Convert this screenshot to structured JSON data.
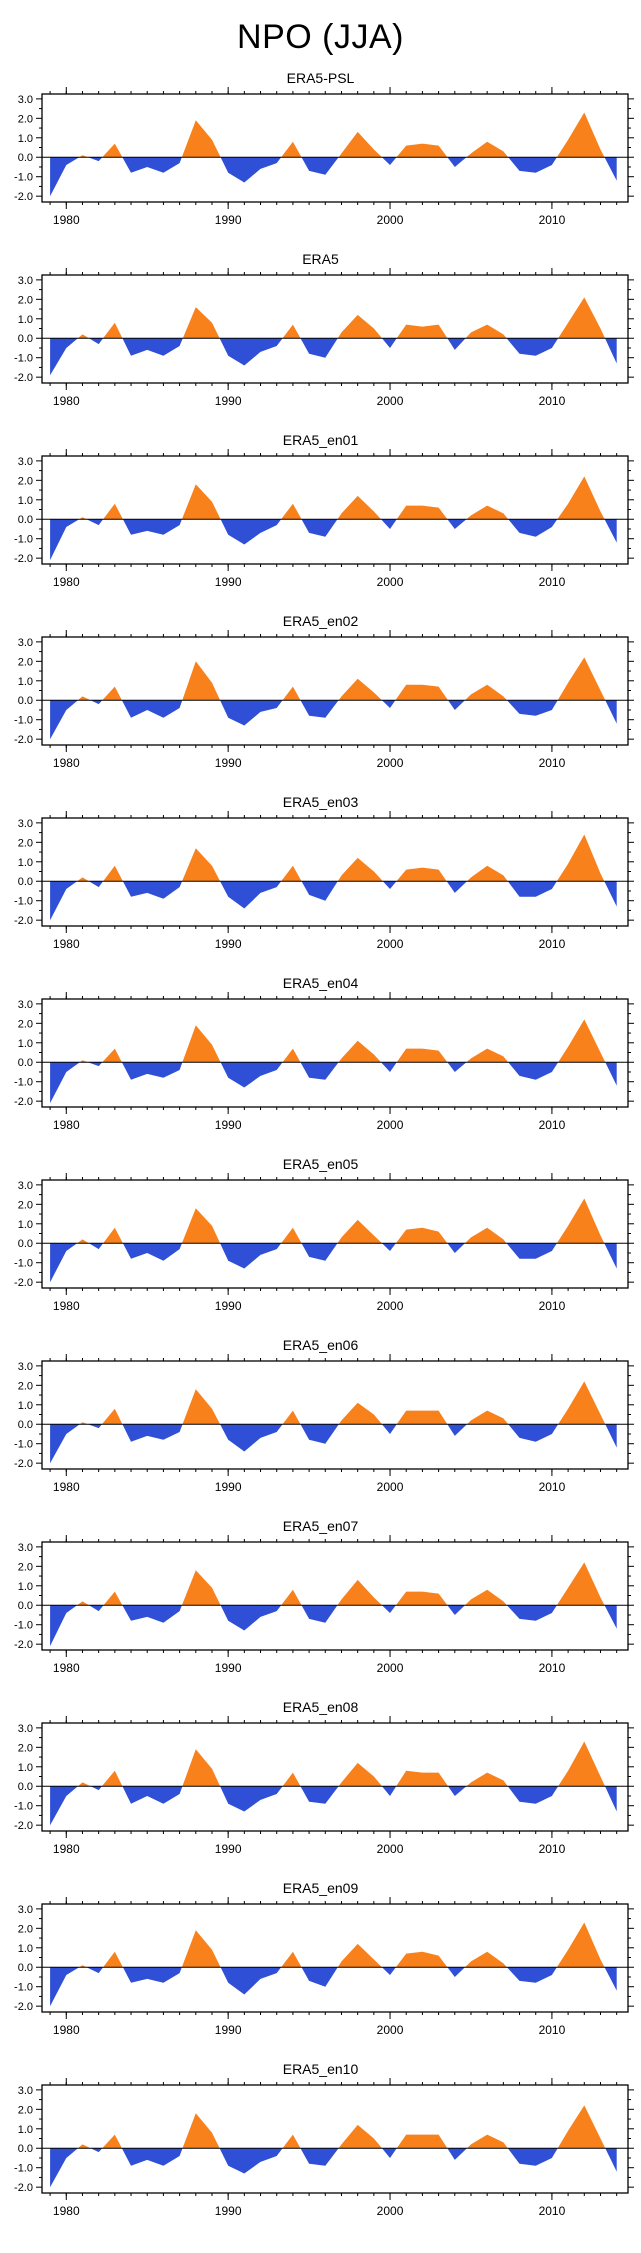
{
  "title": "NPO (JJA)",
  "colors": {
    "positive": "#F8811C",
    "negative": "#2E4FD6",
    "axis": "#000000"
  },
  "chart_data": {
    "type": "area",
    "suptitle": "NPO (JJA)",
    "xlabel": "",
    "ylabel": "",
    "x": [
      1979,
      1980,
      1981,
      1982,
      1983,
      1984,
      1985,
      1986,
      1987,
      1988,
      1989,
      1990,
      1991,
      1992,
      1993,
      1994,
      1995,
      1996,
      1997,
      1998,
      1999,
      2000,
      2001,
      2002,
      2003,
      2004,
      2005,
      2006,
      2007,
      2008,
      2009,
      2010,
      2011,
      2012,
      2013,
      2014
    ],
    "x_ticks": [
      1980,
      1990,
      2000,
      2010
    ],
    "x_tick_labels": [
      "1980",
      "1990",
      "2000",
      "2010"
    ],
    "y_ticks": [
      3.0,
      2.0,
      1.0,
      0.0,
      -1.0,
      -2.0
    ],
    "y_tick_labels": [
      "3.0",
      "2.0",
      "1.0",
      "0.0",
      "-1.0",
      "-2.0"
    ],
    "y_minor_ticks": [
      2.5,
      1.5,
      0.5,
      -0.5,
      -1.5
    ],
    "ylim": [
      -2.3,
      3.25
    ],
    "xlim": [
      1978.5,
      2014.7
    ],
    "grid": false,
    "legend": "none",
    "panels": [
      {
        "title": "ERA5-PSL",
        "values": [
          -2.0,
          -0.4,
          0.1,
          -0.2,
          0.7,
          -0.8,
          -0.5,
          -0.8,
          -0.3,
          1.9,
          0.9,
          -0.8,
          -1.3,
          -0.6,
          -0.3,
          0.8,
          -0.7,
          -0.9,
          0.2,
          1.3,
          0.4,
          -0.4,
          0.6,
          0.7,
          0.6,
          -0.5,
          0.2,
          0.8,
          0.3,
          -0.7,
          -0.8,
          -0.4,
          0.9,
          2.3,
          0.4,
          -1.2
        ]
      },
      {
        "title": "ERA5",
        "values": [
          -1.9,
          -0.5,
          0.2,
          -0.3,
          0.8,
          -0.9,
          -0.6,
          -0.9,
          -0.4,
          1.6,
          0.8,
          -0.9,
          -1.4,
          -0.7,
          -0.4,
          0.7,
          -0.8,
          -1.0,
          0.3,
          1.2,
          0.5,
          -0.5,
          0.7,
          0.6,
          0.7,
          -0.6,
          0.3,
          0.7,
          0.2,
          -0.8,
          -0.9,
          -0.5,
          0.8,
          2.1,
          0.5,
          -1.3
        ]
      },
      {
        "title": "ERA5_en01",
        "values": [
          -2.1,
          -0.4,
          0.1,
          -0.3,
          0.8,
          -0.8,
          -0.6,
          -0.8,
          -0.3,
          1.8,
          0.9,
          -0.8,
          -1.3,
          -0.7,
          -0.3,
          0.8,
          -0.7,
          -0.9,
          0.3,
          1.2,
          0.4,
          -0.5,
          0.7,
          0.7,
          0.6,
          -0.5,
          0.2,
          0.7,
          0.3,
          -0.7,
          -0.9,
          -0.4,
          0.8,
          2.2,
          0.4,
          -1.2
        ]
      },
      {
        "title": "ERA5_en02",
        "values": [
          -2.0,
          -0.5,
          0.2,
          -0.2,
          0.7,
          -0.9,
          -0.5,
          -0.9,
          -0.4,
          2.0,
          0.9,
          -0.9,
          -1.3,
          -0.6,
          -0.4,
          0.7,
          -0.8,
          -0.9,
          0.2,
          1.1,
          0.4,
          -0.4,
          0.8,
          0.8,
          0.7,
          -0.5,
          0.3,
          0.8,
          0.2,
          -0.7,
          -0.8,
          -0.5,
          0.9,
          2.2,
          0.5,
          -1.2
        ]
      },
      {
        "title": "ERA5_en03",
        "values": [
          -2.0,
          -0.4,
          0.2,
          -0.3,
          0.8,
          -0.8,
          -0.6,
          -0.9,
          -0.3,
          1.7,
          0.8,
          -0.8,
          -1.4,
          -0.6,
          -0.3,
          0.8,
          -0.7,
          -1.0,
          0.3,
          1.2,
          0.5,
          -0.4,
          0.6,
          0.7,
          0.6,
          -0.6,
          0.2,
          0.8,
          0.3,
          -0.8,
          -0.8,
          -0.4,
          0.9,
          2.4,
          0.4,
          -1.3
        ]
      },
      {
        "title": "ERA5_en04",
        "values": [
          -2.1,
          -0.5,
          0.1,
          -0.2,
          0.7,
          -0.9,
          -0.6,
          -0.8,
          -0.4,
          1.9,
          0.9,
          -0.8,
          -1.3,
          -0.7,
          -0.4,
          0.7,
          -0.8,
          -0.9,
          0.2,
          1.1,
          0.4,
          -0.5,
          0.7,
          0.7,
          0.6,
          -0.5,
          0.2,
          0.7,
          0.3,
          -0.7,
          -0.9,
          -0.5,
          0.8,
          2.2,
          0.5,
          -1.2
        ]
      },
      {
        "title": "ERA5_en05",
        "values": [
          -2.0,
          -0.4,
          0.2,
          -0.3,
          0.8,
          -0.8,
          -0.5,
          -0.9,
          -0.3,
          1.8,
          0.9,
          -0.9,
          -1.3,
          -0.6,
          -0.3,
          0.8,
          -0.7,
          -0.9,
          0.3,
          1.2,
          0.4,
          -0.4,
          0.7,
          0.8,
          0.6,
          -0.5,
          0.3,
          0.8,
          0.2,
          -0.8,
          -0.8,
          -0.4,
          0.9,
          2.3,
          0.4,
          -1.3
        ]
      },
      {
        "title": "ERA5_en06",
        "values": [
          -2.0,
          -0.5,
          0.1,
          -0.2,
          0.8,
          -0.9,
          -0.6,
          -0.8,
          -0.4,
          1.8,
          0.8,
          -0.8,
          -1.4,
          -0.7,
          -0.4,
          0.7,
          -0.8,
          -1.0,
          0.2,
          1.1,
          0.5,
          -0.5,
          0.7,
          0.7,
          0.7,
          -0.6,
          0.2,
          0.7,
          0.3,
          -0.7,
          -0.9,
          -0.5,
          0.8,
          2.2,
          0.5,
          -1.2
        ]
      },
      {
        "title": "ERA5_en07",
        "values": [
          -2.1,
          -0.4,
          0.2,
          -0.3,
          0.7,
          -0.8,
          -0.6,
          -0.9,
          -0.3,
          1.8,
          0.9,
          -0.8,
          -1.3,
          -0.6,
          -0.3,
          0.8,
          -0.7,
          -0.9,
          0.3,
          1.3,
          0.4,
          -0.4,
          0.7,
          0.7,
          0.6,
          -0.5,
          0.3,
          0.8,
          0.2,
          -0.7,
          -0.8,
          -0.4,
          0.9,
          2.2,
          0.4,
          -1.2
        ]
      },
      {
        "title": "ERA5_en08",
        "values": [
          -2.0,
          -0.5,
          0.2,
          -0.2,
          0.8,
          -0.9,
          -0.5,
          -0.9,
          -0.4,
          1.9,
          0.9,
          -0.9,
          -1.3,
          -0.7,
          -0.4,
          0.7,
          -0.8,
          -0.9,
          0.2,
          1.2,
          0.5,
          -0.5,
          0.8,
          0.7,
          0.7,
          -0.5,
          0.2,
          0.7,
          0.3,
          -0.8,
          -0.9,
          -0.5,
          0.8,
          2.3,
          0.5,
          -1.3
        ]
      },
      {
        "title": "ERA5_en09",
        "values": [
          -2.0,
          -0.4,
          0.1,
          -0.3,
          0.8,
          -0.8,
          -0.6,
          -0.8,
          -0.3,
          1.9,
          0.9,
          -0.8,
          -1.4,
          -0.6,
          -0.3,
          0.8,
          -0.7,
          -1.0,
          0.3,
          1.2,
          0.4,
          -0.4,
          0.7,
          0.8,
          0.6,
          -0.5,
          0.3,
          0.8,
          0.2,
          -0.7,
          -0.8,
          -0.4,
          0.9,
          2.3,
          0.4,
          -1.2
        ]
      },
      {
        "title": "ERA5_en10",
        "values": [
          -2.0,
          -0.5,
          0.2,
          -0.2,
          0.7,
          -0.9,
          -0.6,
          -0.9,
          -0.4,
          1.8,
          0.8,
          -0.9,
          -1.3,
          -0.7,
          -0.4,
          0.7,
          -0.8,
          -0.9,
          0.2,
          1.2,
          0.5,
          -0.5,
          0.7,
          0.7,
          0.7,
          -0.6,
          0.2,
          0.7,
          0.3,
          -0.8,
          -0.9,
          -0.5,
          0.9,
          2.2,
          0.5,
          -1.2
        ]
      }
    ]
  }
}
